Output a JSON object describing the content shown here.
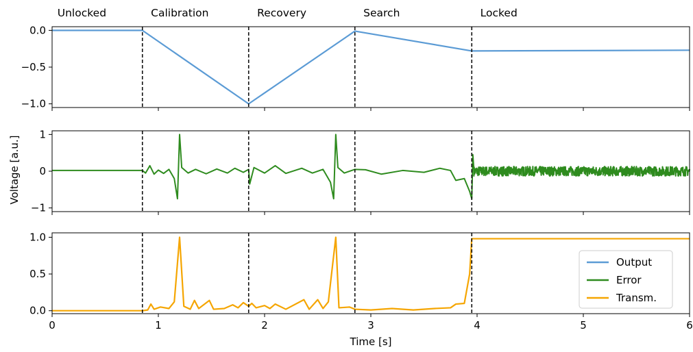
{
  "chart_data": {
    "type": "line",
    "xlabel": "Time [s]",
    "ylabel": "Voltage [a.u.]",
    "xlim": [
      0,
      6
    ],
    "x_ticks": [
      0,
      1,
      2,
      3,
      4,
      5,
      6
    ],
    "phase_boundaries": [
      0.85,
      1.85,
      2.85,
      3.95
    ],
    "phases": [
      {
        "label": "Unlocked",
        "x": 0.05
      },
      {
        "label": "Calibration",
        "x": 0.93
      },
      {
        "label": "Recovery",
        "x": 1.93
      },
      {
        "label": "Search",
        "x": 2.93
      },
      {
        "label": "Locked",
        "x": 4.03
      }
    ],
    "panels": [
      {
        "series": "Output",
        "color": "#5b9bd5",
        "ylim": [
          -1.05,
          0.05
        ],
        "y_ticks": [
          0.0,
          -0.5,
          -1.0
        ],
        "y_tick_labels": [
          "0.0",
          "−0.5",
          "−1.0"
        ],
        "points": [
          [
            0,
            0.0
          ],
          [
            0.85,
            0.0
          ],
          [
            1.85,
            -1.0
          ],
          [
            2.85,
            -0.01
          ],
          [
            3.95,
            -0.28
          ],
          [
            6,
            -0.27
          ]
        ]
      },
      {
        "series": "Error",
        "color": "#2e8b1e",
        "ylim": [
          -1.1,
          1.1
        ],
        "y_ticks": [
          1,
          0,
          -1
        ],
        "y_tick_labels": [
          "1",
          "0",
          "−1"
        ],
        "points": [
          [
            0,
            0.02
          ],
          [
            0.85,
            0.02
          ],
          [
            0.88,
            -0.05
          ],
          [
            0.92,
            0.15
          ],
          [
            0.96,
            -0.08
          ],
          [
            1.0,
            0.03
          ],
          [
            1.05,
            -0.06
          ],
          [
            1.1,
            0.05
          ],
          [
            1.15,
            -0.2
          ],
          [
            1.18,
            -0.75
          ],
          [
            1.2,
            1.0
          ],
          [
            1.22,
            0.1
          ],
          [
            1.28,
            -0.05
          ],
          [
            1.35,
            0.05
          ],
          [
            1.45,
            -0.07
          ],
          [
            1.55,
            0.06
          ],
          [
            1.65,
            -0.05
          ],
          [
            1.72,
            0.08
          ],
          [
            1.8,
            -0.03
          ],
          [
            1.85,
            0.05
          ],
          [
            1.86,
            -0.35
          ],
          [
            1.9,
            0.1
          ],
          [
            2.0,
            -0.05
          ],
          [
            2.1,
            0.15
          ],
          [
            2.2,
            -0.06
          ],
          [
            2.35,
            0.08
          ],
          [
            2.45,
            -0.05
          ],
          [
            2.55,
            0.05
          ],
          [
            2.62,
            -0.3
          ],
          [
            2.65,
            -0.75
          ],
          [
            2.67,
            1.0
          ],
          [
            2.69,
            0.1
          ],
          [
            2.75,
            -0.05
          ],
          [
            2.85,
            0.05
          ],
          [
            2.95,
            0.04
          ],
          [
            3.1,
            -0.08
          ],
          [
            3.3,
            0.02
          ],
          [
            3.5,
            -0.03
          ],
          [
            3.65,
            0.08
          ],
          [
            3.75,
            0.02
          ],
          [
            3.8,
            -0.25
          ],
          [
            3.88,
            -0.2
          ],
          [
            3.93,
            -0.55
          ],
          [
            3.95,
            -0.75
          ],
          [
            3.96,
            0.45
          ],
          [
            3.97,
            0.05
          ]
        ],
        "noise_segment": {
          "x_start": 3.97,
          "x_end": 6.0,
          "amplitude": 0.13,
          "samples": 900
        }
      },
      {
        "series": "Transm.",
        "color": "#f5a500",
        "ylim": [
          -0.04,
          1.06
        ],
        "y_ticks": [
          1.0,
          0.5,
          0.0
        ],
        "y_tick_labels": [
          "1.0",
          "0.5",
          "0.0"
        ],
        "points": [
          [
            0,
            0.0
          ],
          [
            0.85,
            0.0
          ],
          [
            0.9,
            0.01
          ],
          [
            0.93,
            0.09
          ],
          [
            0.96,
            0.02
          ],
          [
            1.02,
            0.05
          ],
          [
            1.1,
            0.03
          ],
          [
            1.15,
            0.12
          ],
          [
            1.2,
            1.0
          ],
          [
            1.24,
            0.06
          ],
          [
            1.3,
            0.02
          ],
          [
            1.34,
            0.14
          ],
          [
            1.38,
            0.03
          ],
          [
            1.48,
            0.14
          ],
          [
            1.52,
            0.02
          ],
          [
            1.62,
            0.03
          ],
          [
            1.7,
            0.08
          ],
          [
            1.75,
            0.04
          ],
          [
            1.8,
            0.11
          ],
          [
            1.85,
            0.06
          ],
          [
            1.88,
            0.1
          ],
          [
            1.92,
            0.04
          ],
          [
            2.0,
            0.07
          ],
          [
            2.05,
            0.03
          ],
          [
            2.1,
            0.09
          ],
          [
            2.2,
            0.02
          ],
          [
            2.37,
            0.15
          ],
          [
            2.42,
            0.02
          ],
          [
            2.5,
            0.15
          ],
          [
            2.55,
            0.03
          ],
          [
            2.6,
            0.12
          ],
          [
            2.67,
            1.0
          ],
          [
            2.7,
            0.04
          ],
          [
            2.8,
            0.05
          ],
          [
            2.85,
            0.02
          ],
          [
            3.0,
            0.01
          ],
          [
            3.2,
            0.03
          ],
          [
            3.4,
            0.01
          ],
          [
            3.6,
            0.03
          ],
          [
            3.75,
            0.04
          ],
          [
            3.8,
            0.09
          ],
          [
            3.88,
            0.1
          ],
          [
            3.93,
            0.5
          ],
          [
            3.95,
            0.98
          ],
          [
            6,
            0.98
          ]
        ]
      }
    ],
    "legend": {
      "placement": "bottom-right of bottom panel",
      "entries": [
        {
          "label": "Output",
          "color": "#5b9bd5"
        },
        {
          "label": "Error",
          "color": "#2e8b1e"
        },
        {
          "label": "Transm.",
          "color": "#f5a500"
        }
      ]
    },
    "grid": false
  }
}
